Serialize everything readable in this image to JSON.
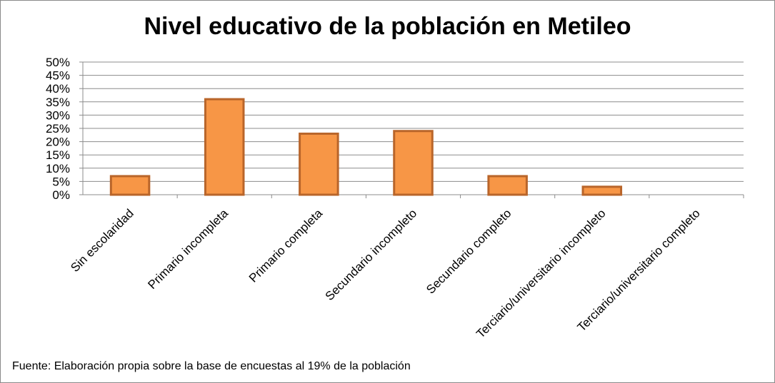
{
  "chart_data": {
    "type": "bar",
    "title": "Nivel educativo de la población en Metileo",
    "categories": [
      "Sin escolaridad",
      "Primario incompleta",
      "Primario completa",
      "Secundario incompleto",
      "Secundario completo",
      "Terciario/universitario incompleto",
      "Terciario/universitario completo"
    ],
    "values": [
      7,
      36,
      23,
      24,
      7,
      3,
      0
    ],
    "ylim": [
      0,
      50
    ],
    "yticks": [
      "0%",
      "5%",
      "10%",
      "15%",
      "20%",
      "25%",
      "30%",
      "35%",
      "40%",
      "45%",
      "50%"
    ],
    "xlabel": "",
    "ylabel": "",
    "grid": true,
    "legend": "none",
    "colors": {
      "bar_fill": "#F79646",
      "bar_border": "#B9652A",
      "grid": "#8C8C8C"
    }
  },
  "footnote": "Fuente:  Elaboración propia sobre la base de encuestas al 19%  de la población"
}
